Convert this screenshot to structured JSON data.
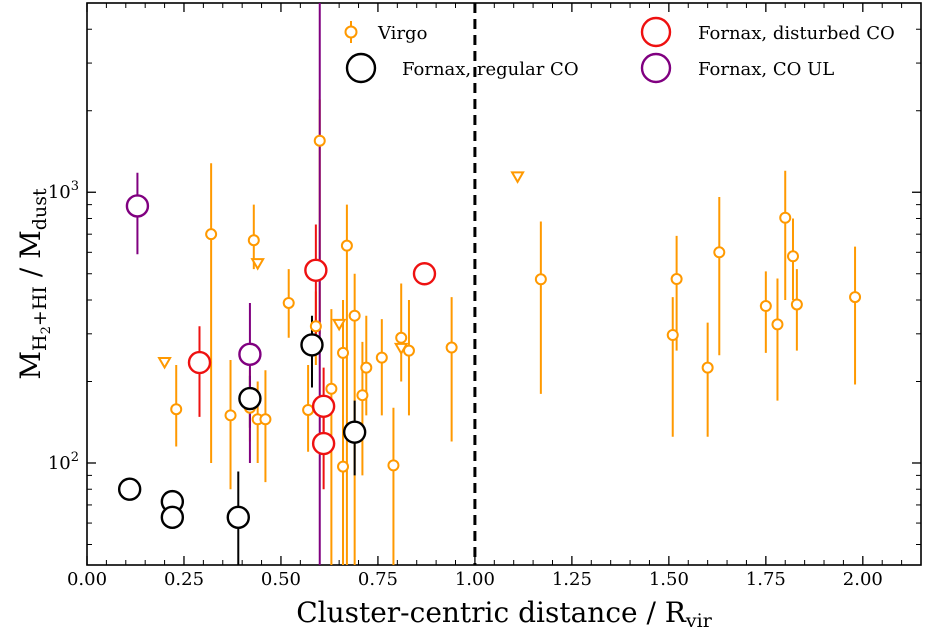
{
  "chart_data": {
    "type": "scatter",
    "xlabel": "Cluster-centric distance / R_vir",
    "ylabel": "M_H2+HI / M_dust",
    "x_ticks": [
      "0.00",
      "0.25",
      "0.50",
      "0.75",
      "1.00",
      "1.25",
      "1.50",
      "1.75",
      "2.00"
    ],
    "y_ticks": [
      "10^2",
      "10^3"
    ],
    "xlim": [
      0.0,
      2.15
    ],
    "ylim": [
      42,
      5000
    ],
    "yscale": "log",
    "grid": false,
    "vline": 1.0,
    "legend_position": "top",
    "series": [
      {
        "name": "Virgo",
        "color": "#ff9900",
        "marker": "small-circle",
        "points": [
          {
            "x": 0.23,
            "y": 158,
            "ylo": 115,
            "yhi": 230
          },
          {
            "x": 0.32,
            "y": 700,
            "ylo": 100,
            "yhi": 1280
          },
          {
            "x": 0.37,
            "y": 150,
            "ylo": 80,
            "yhi": 240
          },
          {
            "x": 0.42,
            "y": 160,
            "ylo": 120,
            "yhi": 220
          },
          {
            "x": 0.43,
            "y": 665,
            "ylo": 520,
            "yhi": 900
          },
          {
            "x": 0.44,
            "y": 145,
            "ylo": 100,
            "yhi": 200
          },
          {
            "x": 0.46,
            "y": 145,
            "ylo": 85,
            "yhi": 220
          },
          {
            "x": 0.52,
            "y": 390,
            "ylo": 290,
            "yhi": 520
          },
          {
            "x": 0.57,
            "y": 157,
            "ylo": 110,
            "yhi": 230
          },
          {
            "x": 0.59,
            "y": 320,
            "ylo": 230,
            "yhi": 430
          },
          {
            "x": 0.6,
            "y": 1550,
            "ylo": 300,
            "yhi": 2200
          },
          {
            "x": 0.63,
            "y": 188,
            "ylo": 42,
            "yhi": 370
          },
          {
            "x": 0.66,
            "y": 255,
            "ylo": 42,
            "yhi": 400
          },
          {
            "x": 0.66,
            "y": 97,
            "ylo": 42,
            "yhi": 150
          },
          {
            "x": 0.67,
            "y": 635,
            "ylo": 42,
            "yhi": 900
          },
          {
            "x": 0.69,
            "y": 350,
            "ylo": 42,
            "yhi": 500
          },
          {
            "x": 0.71,
            "y": 178,
            "ylo": 90,
            "yhi": 280
          },
          {
            "x": 0.72,
            "y": 225,
            "ylo": 150,
            "yhi": 350
          },
          {
            "x": 0.76,
            "y": 245,
            "ylo": 150,
            "yhi": 340
          },
          {
            "x": 0.79,
            "y": 98,
            "ylo": 42,
            "yhi": 160
          },
          {
            "x": 0.81,
            "y": 290,
            "ylo": 200,
            "yhi": 460
          },
          {
            "x": 0.83,
            "y": 260,
            "ylo": 150,
            "yhi": 400
          },
          {
            "x": 0.94,
            "y": 267,
            "ylo": 120,
            "yhi": 410
          },
          {
            "x": 1.17,
            "y": 477,
            "ylo": 180,
            "yhi": 780
          },
          {
            "x": 1.51,
            "y": 297,
            "ylo": 125,
            "yhi": 410
          },
          {
            "x": 1.52,
            "y": 478,
            "ylo": 260,
            "yhi": 690
          },
          {
            "x": 1.6,
            "y": 225,
            "ylo": 125,
            "yhi": 330
          },
          {
            "x": 1.63,
            "y": 600,
            "ylo": 250,
            "yhi": 960
          },
          {
            "x": 1.75,
            "y": 380,
            "ylo": 255,
            "yhi": 510
          },
          {
            "x": 1.78,
            "y": 325,
            "ylo": 170,
            "yhi": 480
          },
          {
            "x": 1.8,
            "y": 805,
            "ylo": 400,
            "yhi": 1200
          },
          {
            "x": 1.82,
            "y": 580,
            "ylo": 400,
            "yhi": 800
          },
          {
            "x": 1.83,
            "y": 385,
            "ylo": 260,
            "yhi": 520
          },
          {
            "x": 1.98,
            "y": 410,
            "ylo": 195,
            "yhi": 630
          }
        ]
      },
      {
        "name": "Virgo",
        "color": "#ff9900",
        "marker": "triangle-down",
        "points": [
          {
            "x": 0.2,
            "y": 235
          },
          {
            "x": 0.44,
            "y": 545
          },
          {
            "x": 0.65,
            "y": 325
          },
          {
            "x": 0.81,
            "y": 265
          },
          {
            "x": 1.11,
            "y": 1140
          }
        ]
      },
      {
        "name": "Fornax, regular CO",
        "color": "#000000",
        "marker": "large-circle",
        "points": [
          {
            "x": 0.11,
            "y": 80
          },
          {
            "x": 0.22,
            "y": 72
          },
          {
            "x": 0.22,
            "y": 63
          },
          {
            "x": 0.39,
            "y": 63,
            "ylo": 42,
            "yhi": 93
          },
          {
            "x": 0.42,
            "y": 173,
            "ylo": 135,
            "yhi": 210
          },
          {
            "x": 0.58,
            "y": 273,
            "ylo": 190,
            "yhi": 350
          },
          {
            "x": 0.69,
            "y": 130,
            "ylo": 90,
            "yhi": 170
          }
        ]
      },
      {
        "name": "Fornax, disturbed CO",
        "color": "#ee1111",
        "marker": "large-circle",
        "points": [
          {
            "x": 0.29,
            "y": 235,
            "ylo": 148,
            "yhi": 320
          },
          {
            "x": 0.59,
            "y": 515,
            "ylo": 300,
            "yhi": 760
          },
          {
            "x": 0.61,
            "y": 162,
            "ylo": 110,
            "yhi": 225
          },
          {
            "x": 0.61,
            "y": 118,
            "ylo": 80,
            "yhi": 160
          },
          {
            "x": 0.87,
            "y": 500
          }
        ]
      },
      {
        "name": "Fornax, CO UL",
        "color": "#800080",
        "marker": "large-circle",
        "points": [
          {
            "x": 0.13,
            "y": 890,
            "ylo": 590,
            "yhi": 1180
          },
          {
            "x": 0.42,
            "y": 252,
            "ylo": 100,
            "yhi": 390
          },
          {
            "x": 0.6,
            "y": null,
            "ylo": 42,
            "yhi": 5000
          }
        ]
      }
    ],
    "legend": [
      {
        "label": "Virgo",
        "color": "#ff9900",
        "marker": "small-circle-errorbar"
      },
      {
        "label": "Fornax, regular CO",
        "color": "#000000",
        "marker": "large-circle"
      },
      {
        "label": "Fornax, disturbed CO",
        "color": "#ee1111",
        "marker": "large-circle"
      },
      {
        "label": "Fornax, CO UL",
        "color": "#800080",
        "marker": "large-circle"
      }
    ]
  }
}
